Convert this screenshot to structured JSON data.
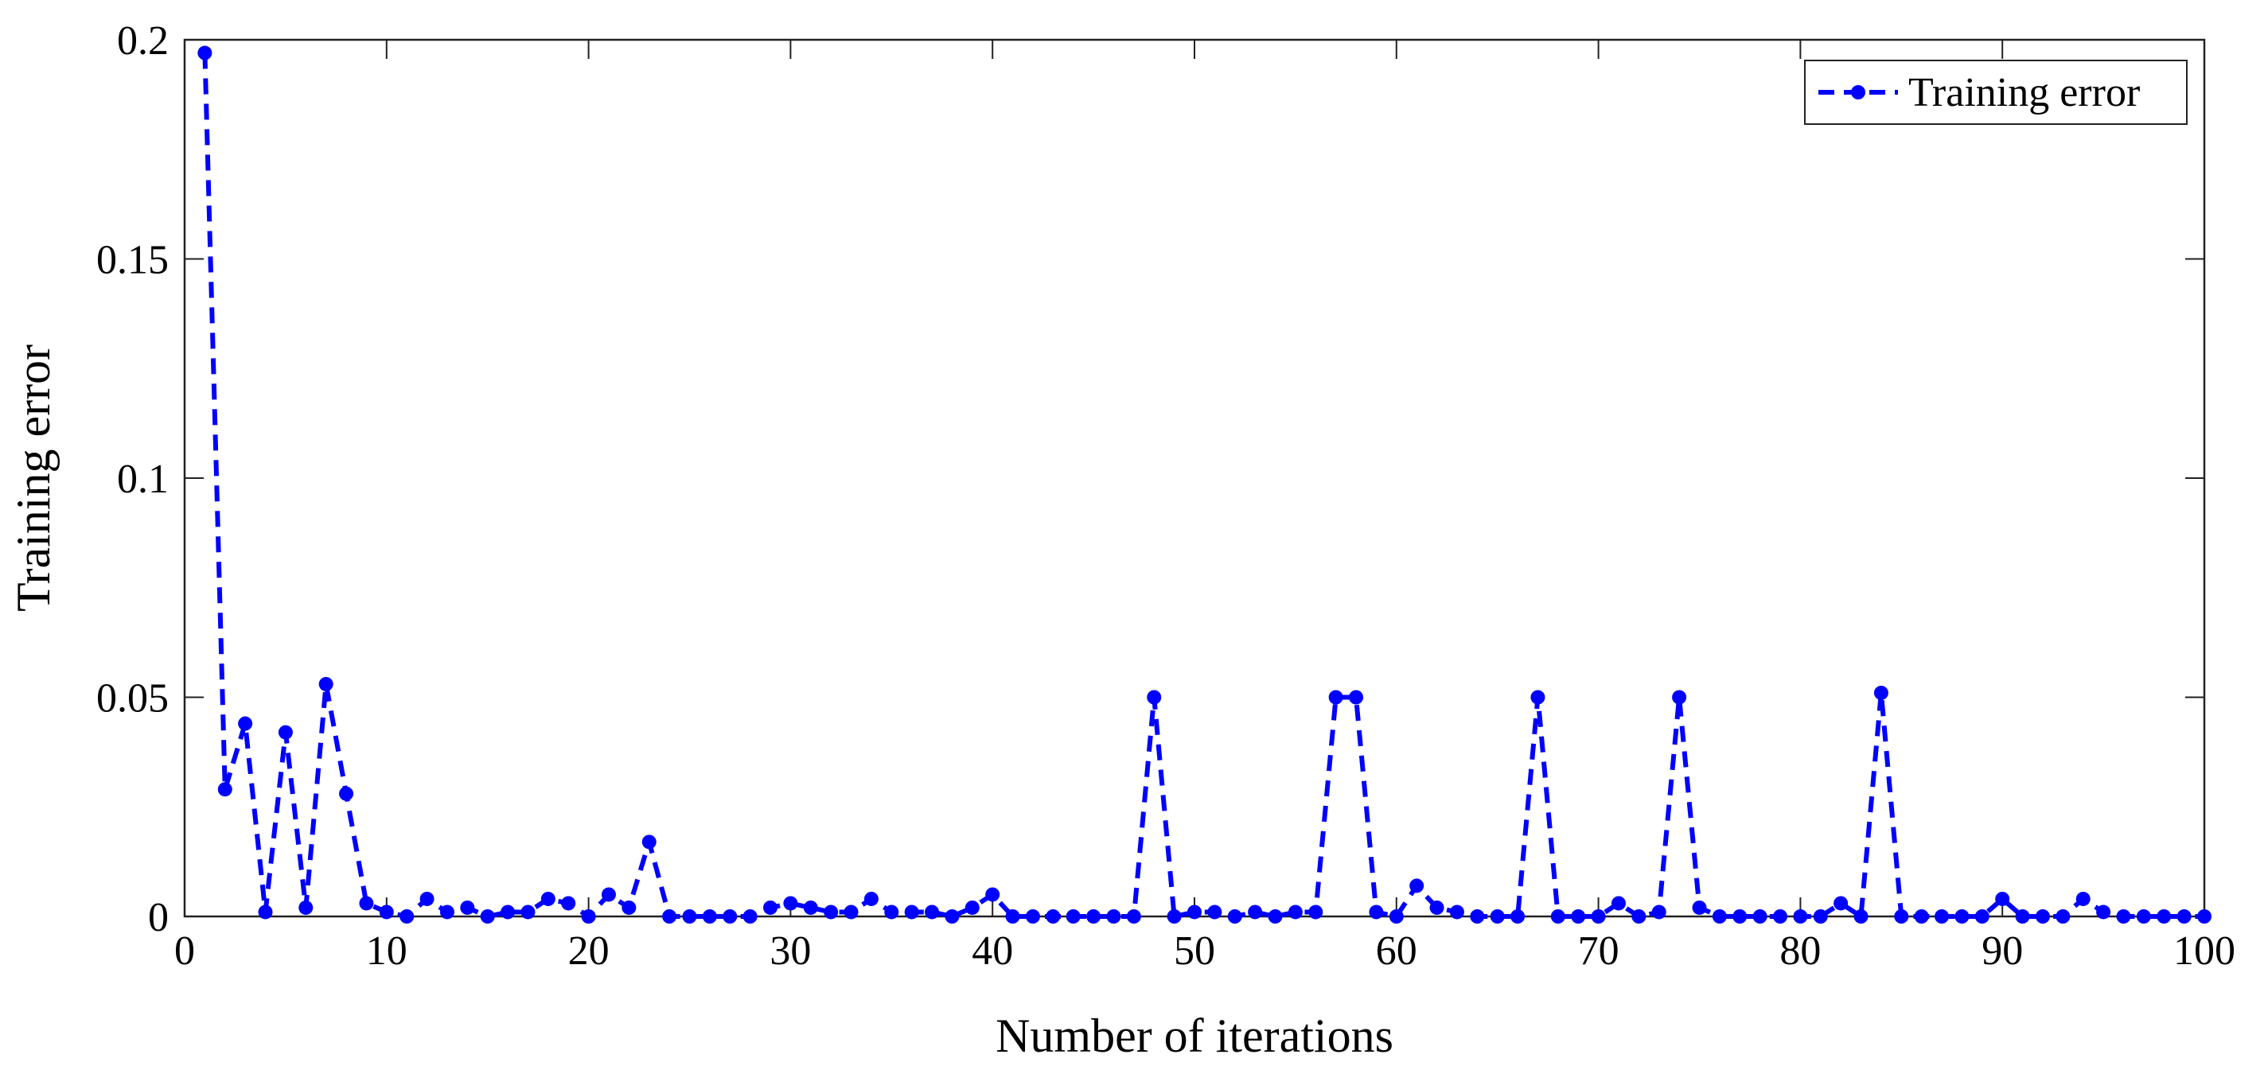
{
  "chart_data": {
    "type": "line",
    "title": "",
    "xlabel": "Number of iterations",
    "ylabel": "Training error",
    "xlim": [
      0,
      100
    ],
    "ylim": [
      0,
      0.2
    ],
    "xticks": [
      0,
      10,
      20,
      30,
      40,
      50,
      60,
      70,
      80,
      90,
      100
    ],
    "yticks": [
      0,
      0.05,
      0.1,
      0.15,
      0.2
    ],
    "xtick_labels": [
      "0",
      "10",
      "20",
      "30",
      "40",
      "50",
      "60",
      "70",
      "80",
      "90",
      "100"
    ],
    "ytick_labels": [
      "0",
      "0.05",
      "0.1",
      "0.15",
      "0.2"
    ],
    "grid": false,
    "legend_position": "top-right",
    "line_color": "#0000ff",
    "series": [
      {
        "name": "Training error",
        "x": [
          1,
          2,
          3,
          4,
          5,
          6,
          7,
          8,
          9,
          10,
          11,
          12,
          13,
          14,
          15,
          16,
          17,
          18,
          19,
          20,
          21,
          22,
          23,
          24,
          25,
          26,
          27,
          28,
          29,
          30,
          31,
          32,
          33,
          34,
          35,
          36,
          37,
          38,
          39,
          40,
          41,
          42,
          43,
          44,
          45,
          46,
          47,
          48,
          49,
          50,
          51,
          52,
          53,
          54,
          55,
          56,
          57,
          58,
          59,
          60,
          61,
          62,
          63,
          64,
          65,
          66,
          67,
          68,
          69,
          70,
          71,
          72,
          73,
          74,
          75,
          76,
          77,
          78,
          79,
          80,
          81,
          82,
          83,
          84,
          85,
          86,
          87,
          88,
          89,
          90,
          91,
          92,
          93,
          94,
          95,
          96,
          97,
          98,
          99,
          100
        ],
        "values": [
          0.197,
          0.029,
          0.044,
          0.001,
          0.042,
          0.002,
          0.053,
          0.028,
          0.003,
          0.001,
          0.0,
          0.004,
          0.001,
          0.002,
          0.0,
          0.001,
          0.001,
          0.004,
          0.003,
          0.0,
          0.005,
          0.002,
          0.017,
          0.0,
          0.0,
          0.0,
          0.0,
          0.0,
          0.002,
          0.003,
          0.002,
          0.001,
          0.001,
          0.004,
          0.001,
          0.001,
          0.001,
          0.0,
          0.002,
          0.005,
          0.0,
          0.0,
          0.0,
          0.0,
          0.0,
          0.0,
          0.0,
          0.05,
          0.0,
          0.001,
          0.001,
          0.0,
          0.001,
          0.0,
          0.001,
          0.001,
          0.05,
          0.05,
          0.001,
          0.0,
          0.007,
          0.002,
          0.001,
          0.0,
          0.0,
          0.0,
          0.05,
          0.0,
          0.0,
          0.0,
          0.003,
          0.0,
          0.001,
          0.05,
          0.002,
          0.0,
          0.0,
          0.0,
          0.0,
          0.0,
          0.0,
          0.003,
          0.0,
          0.051,
          0.0,
          0.0,
          0.0,
          0.0,
          0.0,
          0.004,
          0.0,
          0.0,
          0.0,
          0.004,
          0.001,
          0.0,
          0.0,
          0.0,
          0.0,
          0.0
        ]
      }
    ]
  }
}
